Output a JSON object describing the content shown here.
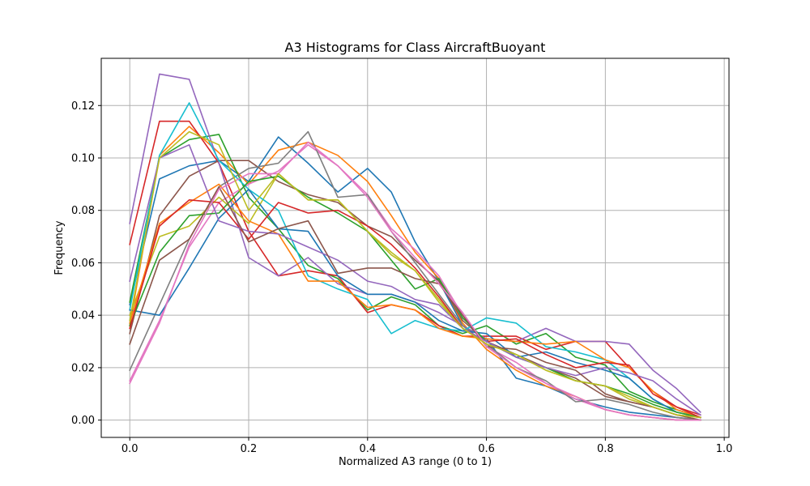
{
  "chart_data": {
    "type": "line",
    "title": "A3 Histograms for Class AircraftBuoyant",
    "xlabel": "Normalized A3 range (0 to 1)",
    "ylabel": "Frequency",
    "xlim": [
      -0.048,
      1.008
    ],
    "ylim": [
      -0.0066,
      0.138
    ],
    "xticks": [
      0.0,
      0.2,
      0.4,
      0.6,
      0.8,
      1.0
    ],
    "xtick_labels": [
      "0.0",
      "0.2",
      "0.4",
      "0.6",
      "0.8",
      "1.0"
    ],
    "yticks": [
      0.0,
      0.02,
      0.04,
      0.06,
      0.08,
      0.1,
      0.12
    ],
    "ytick_labels": [
      "0.00",
      "0.02",
      "0.04",
      "0.06",
      "0.08",
      "0.10",
      "0.12"
    ],
    "grid": true,
    "x": [
      0.0,
      0.05,
      0.1,
      0.15,
      0.2,
      0.25,
      0.3,
      0.35,
      0.4,
      0.44,
      0.48,
      0.52,
      0.56,
      0.6,
      0.65,
      0.7,
      0.75,
      0.8,
      0.84,
      0.88,
      0.92,
      0.96
    ],
    "series": [
      {
        "color": "#1f77b4",
        "values": [
          0.044,
          0.092,
          0.097,
          0.099,
          0.091,
          0.108,
          0.098,
          0.087,
          0.096,
          0.087,
          0.068,
          0.053,
          0.036,
          0.031,
          0.016,
          0.013,
          0.008,
          0.005,
          0.003,
          0.002,
          0.001,
          0.0
        ]
      },
      {
        "color": "#ff7f0e",
        "values": [
          0.036,
          0.101,
          0.112,
          0.102,
          0.09,
          0.103,
          0.106,
          0.101,
          0.091,
          0.078,
          0.064,
          0.054,
          0.037,
          0.027,
          0.019,
          0.013,
          0.009,
          0.004,
          0.002,
          0.001,
          0.0,
          0.0
        ]
      },
      {
        "color": "#2ca02c",
        "values": [
          0.045,
          0.1,
          0.107,
          0.109,
          0.085,
          0.073,
          0.059,
          0.054,
          0.042,
          0.047,
          0.044,
          0.036,
          0.033,
          0.036,
          0.029,
          0.033,
          0.024,
          0.021,
          0.011,
          0.007,
          0.004,
          0.001
        ]
      },
      {
        "color": "#d62728",
        "values": [
          0.067,
          0.114,
          0.114,
          0.098,
          0.072,
          0.055,
          0.057,
          0.055,
          0.041,
          0.044,
          0.042,
          0.036,
          0.032,
          0.032,
          0.032,
          0.027,
          0.03,
          0.03,
          0.02,
          0.011,
          0.005,
          0.002
        ]
      },
      {
        "color": "#9467bd",
        "values": [
          0.075,
          0.132,
          0.13,
          0.098,
          0.062,
          0.055,
          0.062,
          0.052,
          0.048,
          0.048,
          0.045,
          0.041,
          0.036,
          0.031,
          0.03,
          0.035,
          0.03,
          0.03,
          0.029,
          0.019,
          0.012,
          0.003
        ]
      },
      {
        "color": "#8c564b",
        "values": [
          0.033,
          0.078,
          0.093,
          0.099,
          0.099,
          0.091,
          0.086,
          0.083,
          0.074,
          0.07,
          0.061,
          0.053,
          0.038,
          0.03,
          0.025,
          0.02,
          0.016,
          0.009,
          0.007,
          0.005,
          0.002,
          0.001
        ]
      },
      {
        "color": "#e377c2",
        "values": [
          0.015,
          0.038,
          0.066,
          0.083,
          0.09,
          0.095,
          0.105,
          0.097,
          0.086,
          0.073,
          0.065,
          0.055,
          0.04,
          0.028,
          0.022,
          0.014,
          0.008,
          0.004,
          0.002,
          0.001,
          0.0,
          0.0
        ]
      },
      {
        "color": "#7f7f7f",
        "values": [
          0.019,
          0.044,
          0.069,
          0.089,
          0.096,
          0.098,
          0.11,
          0.085,
          0.086,
          0.072,
          0.06,
          0.048,
          0.036,
          0.029,
          0.02,
          0.015,
          0.007,
          0.008,
          0.006,
          0.003,
          0.001,
          0.0
        ]
      },
      {
        "color": "#bcbd22",
        "values": [
          0.04,
          0.07,
          0.074,
          0.085,
          0.075,
          0.094,
          0.084,
          0.084,
          0.072,
          0.064,
          0.057,
          0.046,
          0.035,
          0.029,
          0.025,
          0.019,
          0.015,
          0.013,
          0.008,
          0.005,
          0.002,
          0.001
        ]
      },
      {
        "color": "#17becf",
        "values": [
          0.042,
          0.101,
          0.121,
          0.099,
          0.088,
          0.08,
          0.055,
          0.05,
          0.046,
          0.033,
          0.038,
          0.035,
          0.034,
          0.039,
          0.037,
          0.028,
          0.026,
          0.023,
          0.016,
          0.008,
          0.003,
          0.001
        ]
      },
      {
        "color": "#1f77b4",
        "values": [
          0.042,
          0.04,
          0.058,
          0.077,
          0.088,
          0.073,
          0.072,
          0.055,
          0.048,
          0.048,
          0.045,
          0.038,
          0.034,
          0.033,
          0.024,
          0.026,
          0.022,
          0.019,
          0.016,
          0.008,
          0.003,
          0.001
        ]
      },
      {
        "color": "#ff7f0e",
        "values": [
          0.037,
          0.075,
          0.083,
          0.09,
          0.076,
          0.071,
          0.053,
          0.053,
          0.043,
          0.044,
          0.042,
          0.035,
          0.032,
          0.031,
          0.03,
          0.029,
          0.03,
          0.023,
          0.02,
          0.011,
          0.004,
          0.001
        ]
      },
      {
        "color": "#2ca02c",
        "values": [
          0.036,
          0.064,
          0.078,
          0.079,
          0.091,
          0.093,
          0.085,
          0.079,
          0.072,
          0.061,
          0.05,
          0.054,
          0.039,
          0.03,
          0.024,
          0.02,
          0.015,
          0.013,
          0.01,
          0.006,
          0.003,
          0.001
        ]
      },
      {
        "color": "#d62728",
        "values": [
          0.035,
          0.074,
          0.084,
          0.083,
          0.069,
          0.083,
          0.079,
          0.08,
          0.074,
          0.067,
          0.058,
          0.047,
          0.035,
          0.03,
          0.031,
          0.025,
          0.02,
          0.022,
          0.021,
          0.01,
          0.005,
          0.001
        ]
      },
      {
        "color": "#9467bd",
        "values": [
          0.053,
          0.1,
          0.105,
          0.076,
          0.072,
          0.071,
          0.066,
          0.061,
          0.053,
          0.051,
          0.046,
          0.044,
          0.035,
          0.03,
          0.024,
          0.02,
          0.017,
          0.02,
          0.018,
          0.015,
          0.008,
          0.002
        ]
      },
      {
        "color": "#8c564b",
        "values": [
          0.029,
          0.061,
          0.069,
          0.089,
          0.068,
          0.073,
          0.076,
          0.056,
          0.058,
          0.058,
          0.054,
          0.052,
          0.04,
          0.028,
          0.027,
          0.022,
          0.019,
          0.01,
          0.007,
          0.005,
          0.002,
          0.0
        ]
      },
      {
        "color": "#e377c2",
        "values": [
          0.014,
          0.037,
          0.067,
          0.088,
          0.094,
          0.094,
          0.106,
          0.097,
          0.085,
          0.072,
          0.062,
          0.052,
          0.041,
          0.028,
          0.02,
          0.014,
          0.009,
          0.004,
          0.002,
          0.001,
          0.0,
          0.0
        ]
      },
      {
        "color": "#bcbd22",
        "values": [
          0.038,
          0.1,
          0.11,
          0.105,
          0.08,
          0.094,
          0.084,
          0.084,
          0.072,
          0.063,
          0.057,
          0.045,
          0.035,
          0.029,
          0.025,
          0.019,
          0.015,
          0.013,
          0.009,
          0.005,
          0.002,
          0.001
        ]
      }
    ]
  }
}
